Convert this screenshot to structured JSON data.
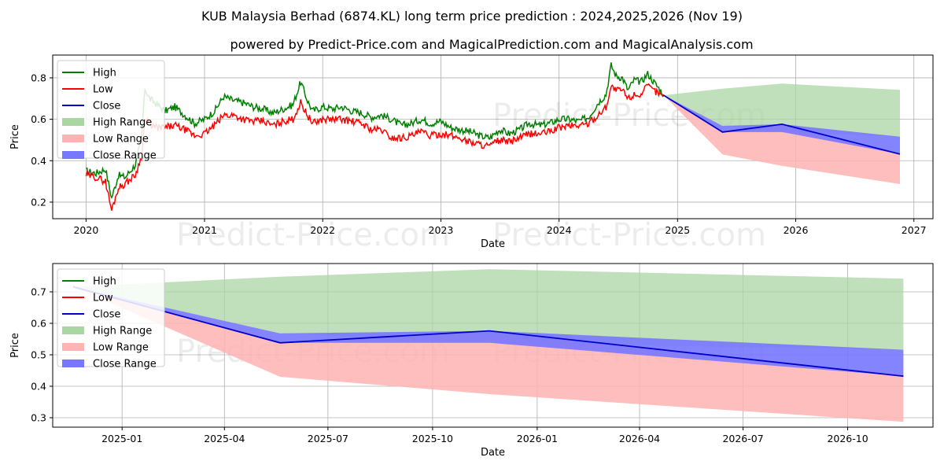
{
  "page": {
    "title": "KUB Malaysia Berhad (6874.KL) long term price prediction : 2024,2025,2026 (Nov 19)",
    "subtitle": "powered by Predict-Price.com and MagicalPrediction.com and MagicalAnalysis.com",
    "watermark": "Predict-Price.com"
  },
  "colors": {
    "high": "#008000",
    "low": "#ff0000",
    "close": "#0000cc",
    "high_range": "#a9d6a3",
    "low_range": "#ffb3b3",
    "close_range": "#7777ff"
  },
  "legend": [
    "High",
    "Low",
    "Close",
    "High Range",
    "Low Range",
    "Close Range"
  ],
  "chart_data": [
    {
      "type": "line",
      "xlabel": "Date",
      "ylabel": "Price",
      "x_tick_labels": [
        "2020",
        "2021",
        "2022",
        "2023",
        "2024",
        "2025",
        "2026",
        "2027"
      ],
      "y_tick_labels": [
        "0.2",
        "0.4",
        "0.6",
        "0.8"
      ],
      "xlim": [
        "2019-09-20",
        "2027-03-01"
      ],
      "ylim": [
        0.12,
        0.91
      ],
      "grid": true,
      "legend_position": "top-left",
      "history_dates": [
        "2020-01-01",
        "2020-02-01",
        "2020-03-01",
        "2020-03-20",
        "2020-04-10",
        "2020-05-01",
        "2020-06-01",
        "2020-06-20",
        "2020-07-01",
        "2020-07-15",
        "2020-08-01",
        "2020-09-01",
        "2020-10-01",
        "2020-11-01",
        "2020-12-01",
        "2021-01-01",
        "2021-02-01",
        "2021-03-01",
        "2021-04-01",
        "2021-05-01",
        "2021-06-01",
        "2021-07-01",
        "2021-08-01",
        "2021-09-01",
        "2021-10-01",
        "2021-10-25",
        "2021-11-15",
        "2021-12-01",
        "2022-01-01",
        "2022-02-01",
        "2022-03-01",
        "2022-04-01",
        "2022-05-01",
        "2022-06-01",
        "2022-07-01",
        "2022-08-01",
        "2022-09-01",
        "2022-10-01",
        "2022-11-01",
        "2022-12-01",
        "2023-01-01",
        "2023-02-01",
        "2023-03-01",
        "2023-04-01",
        "2023-05-01",
        "2023-06-01",
        "2023-07-01",
        "2023-08-01",
        "2023-09-01",
        "2023-10-01",
        "2023-11-01",
        "2023-12-01",
        "2024-01-01",
        "2024-02-01",
        "2024-03-01",
        "2024-04-01",
        "2024-05-01",
        "2024-05-25",
        "2024-06-10",
        "2024-06-25",
        "2024-07-15",
        "2024-08-01",
        "2024-08-20",
        "2024-09-10",
        "2024-10-01",
        "2024-10-20",
        "2024-11-19"
      ],
      "history_high": [
        0.35,
        0.34,
        0.36,
        0.22,
        0.33,
        0.32,
        0.38,
        0.5,
        0.75,
        0.7,
        0.68,
        0.64,
        0.66,
        0.62,
        0.58,
        0.6,
        0.64,
        0.71,
        0.69,
        0.68,
        0.66,
        0.65,
        0.63,
        0.65,
        0.67,
        0.78,
        0.69,
        0.64,
        0.66,
        0.65,
        0.66,
        0.64,
        0.63,
        0.61,
        0.62,
        0.6,
        0.57,
        0.58,
        0.6,
        0.58,
        0.59,
        0.56,
        0.55,
        0.54,
        0.52,
        0.51,
        0.55,
        0.53,
        0.55,
        0.58,
        0.57,
        0.58,
        0.6,
        0.6,
        0.59,
        0.61,
        0.68,
        0.72,
        0.86,
        0.81,
        0.8,
        0.74,
        0.79,
        0.78,
        0.82,
        0.78,
        0.72
      ],
      "history_low": [
        0.33,
        0.32,
        0.3,
        0.16,
        0.27,
        0.29,
        0.33,
        0.42,
        0.6,
        0.58,
        0.56,
        0.56,
        0.57,
        0.55,
        0.52,
        0.53,
        0.57,
        0.62,
        0.62,
        0.6,
        0.59,
        0.59,
        0.57,
        0.59,
        0.6,
        0.68,
        0.62,
        0.58,
        0.6,
        0.6,
        0.6,
        0.59,
        0.58,
        0.55,
        0.55,
        0.51,
        0.51,
        0.52,
        0.54,
        0.52,
        0.53,
        0.52,
        0.51,
        0.49,
        0.48,
        0.47,
        0.5,
        0.49,
        0.51,
        0.53,
        0.53,
        0.54,
        0.56,
        0.57,
        0.57,
        0.58,
        0.62,
        0.66,
        0.76,
        0.74,
        0.74,
        0.7,
        0.72,
        0.72,
        0.76,
        0.74,
        0.71
      ],
      "forecast_dates": [
        "2024-11-19",
        "2025-05-20",
        "2025-11-20",
        "2026-11-19"
      ],
      "close": [
        0.716,
        0.538,
        0.576,
        0.432
      ],
      "high_range": [
        [
          0.716,
          0.716
        ],
        [
          0.568,
          0.748
        ],
        [
          0.538,
          0.772
        ],
        [
          0.516,
          0.742
        ]
      ],
      "low_range": [
        [
          0.716,
          0.716
        ],
        [
          0.43,
          0.538
        ],
        [
          0.375,
          0.576
        ],
        [
          0.287,
          0.432
        ]
      ],
      "close_range": [
        [
          0.716,
          0.716
        ],
        [
          0.538,
          0.568
        ],
        [
          0.538,
          0.576
        ],
        [
          0.432,
          0.516
        ]
      ]
    },
    {
      "type": "area",
      "xlabel": "Date",
      "ylabel": "Price",
      "x_tick_labels": [
        "2025-01",
        "2025-04",
        "2025-07",
        "2025-10",
        "2026-01",
        "2026-04",
        "2026-07",
        "2026-10"
      ],
      "y_tick_labels": [
        "0.3",
        "0.4",
        "0.5",
        "0.6",
        "0.7"
      ],
      "xlim": [
        "2024-11-01",
        "2026-12-15"
      ],
      "ylim": [
        0.27,
        0.79
      ],
      "grid": true,
      "legend_position": "top-left",
      "forecast_dates": [
        "2024-11-19",
        "2025-05-20",
        "2025-11-20",
        "2026-11-19"
      ],
      "close": [
        0.716,
        0.538,
        0.576,
        0.432
      ],
      "high_range": [
        [
          0.716,
          0.716
        ],
        [
          0.568,
          0.748
        ],
        [
          0.538,
          0.772
        ],
        [
          0.516,
          0.742
        ]
      ],
      "low_range": [
        [
          0.716,
          0.716
        ],
        [
          0.43,
          0.538
        ],
        [
          0.375,
          0.576
        ],
        [
          0.287,
          0.432
        ]
      ],
      "close_range": [
        [
          0.716,
          0.716
        ],
        [
          0.538,
          0.568
        ],
        [
          0.538,
          0.576
        ],
        [
          0.432,
          0.516
        ]
      ]
    }
  ]
}
